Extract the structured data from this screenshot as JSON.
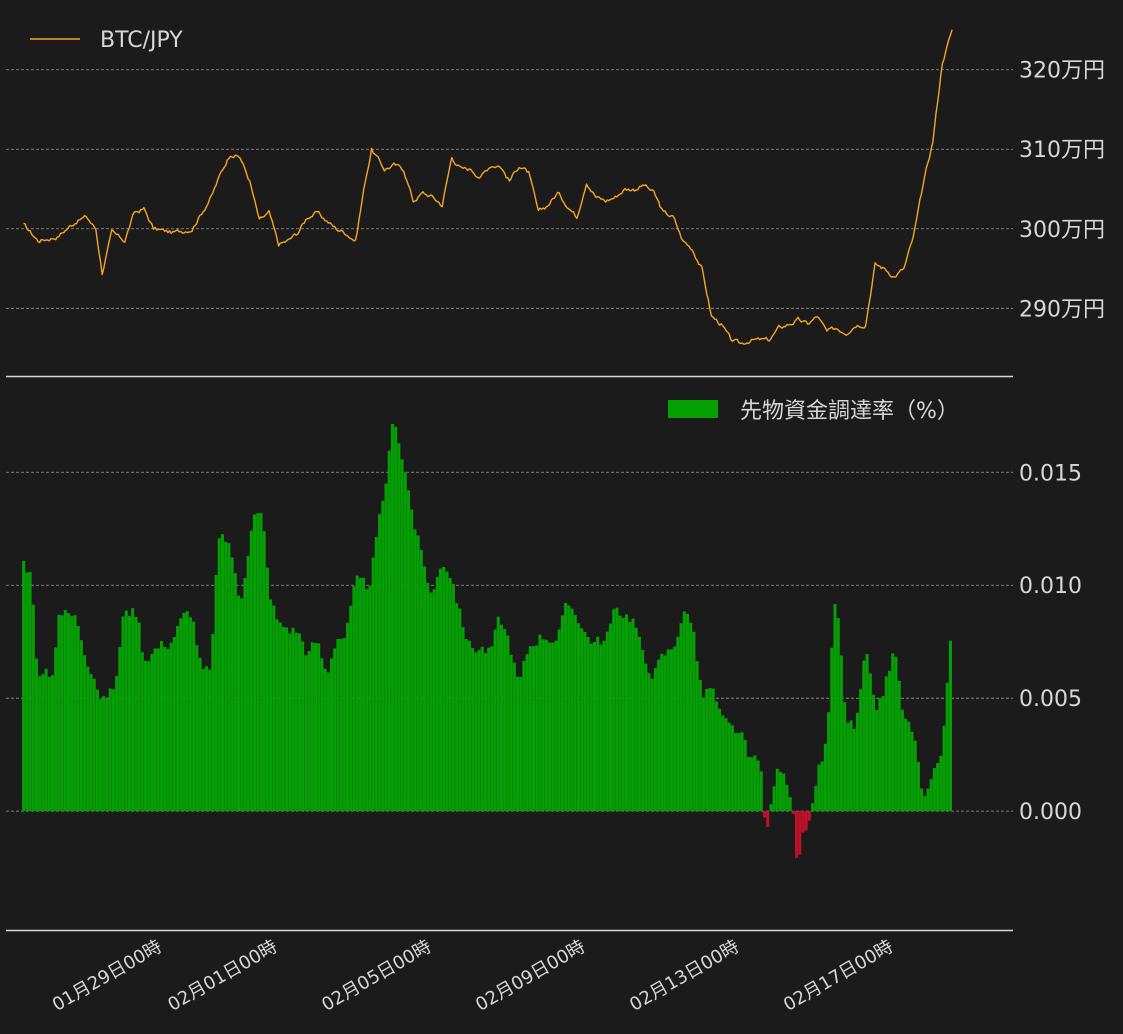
{
  "chart_data": [
    {
      "type": "line",
      "legend": "top-left",
      "grid": true,
      "series": [
        {
          "name": "BTC/JPY",
          "color": "#f5a623"
        }
      ],
      "yticks": [
        {
          "value": 2900000,
          "label": "290万円"
        },
        {
          "value": 3000000,
          "label": "300万円"
        },
        {
          "value": 3100000,
          "label": "310万円"
        },
        {
          "value": 3200000,
          "label": "320万円"
        }
      ],
      "ylim": [
        2835000,
        3260000
      ],
      "anchors": [
        [
          "2020-01-25 09:00",
          3005000
        ],
        [
          "2020-01-25 18:00",
          2985000
        ],
        [
          "2020-01-26 06:00",
          2990000
        ],
        [
          "2020-01-26 18:00",
          3010000
        ],
        [
          "2020-01-27 00:00",
          3015000
        ],
        [
          "2020-01-27 06:00",
          3000000
        ],
        [
          "2020-01-27 10:00",
          2945000
        ],
        [
          "2020-01-27 16:00",
          2995000
        ],
        [
          "2020-01-28 00:00",
          2985000
        ],
        [
          "2020-01-28 06:00",
          3020000
        ],
        [
          "2020-01-28 12:00",
          3025000
        ],
        [
          "2020-01-28 18:00",
          3000000
        ],
        [
          "2020-01-29 06:00",
          2995000
        ],
        [
          "2020-01-29 18:00",
          3000000
        ],
        [
          "2020-01-30 00:00",
          3020000
        ],
        [
          "2020-01-30 06:00",
          3040000
        ],
        [
          "2020-01-30 12:00",
          3070000
        ],
        [
          "2020-01-30 18:00",
          3095000
        ],
        [
          "2020-01-31 00:00",
          3090000
        ],
        [
          "2020-01-31 06:00",
          3060000
        ],
        [
          "2020-01-31 12:00",
          3010000
        ],
        [
          "2020-01-31 18:00",
          3020000
        ],
        [
          "2020-02-01 00:00",
          2980000
        ],
        [
          "2020-02-01 06:00",
          2985000
        ],
        [
          "2020-02-01 12:00",
          2995000
        ],
        [
          "2020-02-01 18:00",
          3015000
        ],
        [
          "2020-02-02 00:00",
          3020000
        ],
        [
          "2020-02-02 06:00",
          3010000
        ],
        [
          "2020-02-02 12:00",
          3000000
        ],
        [
          "2020-02-02 18:00",
          2995000
        ],
        [
          "2020-02-03 00:00",
          2985000
        ],
        [
          "2020-02-03 06:00",
          3060000
        ],
        [
          "2020-02-03 10:00",
          3100000
        ],
        [
          "2020-02-03 18:00",
          3075000
        ],
        [
          "2020-02-04 00:00",
          3080000
        ],
        [
          "2020-02-04 06:00",
          3075000
        ],
        [
          "2020-02-04 12:00",
          3035000
        ],
        [
          "2020-02-04 18:00",
          3045000
        ],
        [
          "2020-02-05 00:00",
          3040000
        ],
        [
          "2020-02-05 06:00",
          3030000
        ],
        [
          "2020-02-05 12:00",
          3090000
        ],
        [
          "2020-02-05 18:00",
          3075000
        ],
        [
          "2020-02-06 00:00",
          3075000
        ],
        [
          "2020-02-06 06:00",
          3065000
        ],
        [
          "2020-02-06 12:00",
          3080000
        ],
        [
          "2020-02-06 18:00",
          3080000
        ],
        [
          "2020-02-07 00:00",
          3060000
        ],
        [
          "2020-02-07 06:00",
          3080000
        ],
        [
          "2020-02-07 12:00",
          3070000
        ],
        [
          "2020-02-07 18:00",
          3020000
        ],
        [
          "2020-02-08 00:00",
          3030000
        ],
        [
          "2020-02-08 06:00",
          3045000
        ],
        [
          "2020-02-08 12:00",
          3030000
        ],
        [
          "2020-02-08 18:00",
          3015000
        ],
        [
          "2020-02-09 00:00",
          3060000
        ],
        [
          "2020-02-09 06:00",
          3040000
        ],
        [
          "2020-02-09 12:00",
          3035000
        ],
        [
          "2020-02-09 18:00",
          3040000
        ],
        [
          "2020-02-10 00:00",
          3050000
        ],
        [
          "2020-02-10 06:00",
          3050000
        ],
        [
          "2020-02-10 12:00",
          3055000
        ],
        [
          "2020-02-10 18:00",
          3045000
        ],
        [
          "2020-02-11 00:00",
          3020000
        ],
        [
          "2020-02-11 06:00",
          3015000
        ],
        [
          "2020-02-11 12:00",
          2985000
        ],
        [
          "2020-02-11 18:00",
          2975000
        ],
        [
          "2020-02-12 00:00",
          2950000
        ],
        [
          "2020-02-12 06:00",
          2890000
        ],
        [
          "2020-02-12 12:00",
          2880000
        ],
        [
          "2020-02-12 18:00",
          2860000
        ],
        [
          "2020-02-13 00:00",
          2855000
        ],
        [
          "2020-02-13 06:00",
          2860000
        ],
        [
          "2020-02-13 12:00",
          2860000
        ],
        [
          "2020-02-13 18:00",
          2860000
        ],
        [
          "2020-02-14 00:00",
          2875000
        ],
        [
          "2020-02-14 06:00",
          2880000
        ],
        [
          "2020-02-14 12:00",
          2885000
        ],
        [
          "2020-02-14 18:00",
          2880000
        ],
        [
          "2020-02-15 00:00",
          2890000
        ],
        [
          "2020-02-15 06:00",
          2870000
        ],
        [
          "2020-02-15 12:00",
          2875000
        ],
        [
          "2020-02-15 18:00",
          2870000
        ],
        [
          "2020-02-16 00:00",
          2880000
        ],
        [
          "2020-02-16 06:00",
          2880000
        ],
        [
          "2020-02-16 12:00",
          2955000
        ],
        [
          "2020-02-16 18:00",
          2950000
        ],
        [
          "2020-02-17 00:00",
          2940000
        ],
        [
          "2020-02-17 06:00",
          2950000
        ],
        [
          "2020-02-17 12:00",
          2990000
        ],
        [
          "2020-02-17 18:00",
          3055000
        ],
        [
          "2020-02-18 00:00",
          3110000
        ],
        [
          "2020-02-18 06:00",
          3210000
        ],
        [
          "2020-02-18 12:00",
          3250000
        ]
      ]
    },
    {
      "type": "bar",
      "legend": "top-right",
      "grid": true,
      "series": [
        {
          "name": "先物資金調達率（%）",
          "color": "#04a004",
          "negative_color": "#c0102a"
        }
      ],
      "yticks": [
        {
          "value": 0,
          "label": "0.000"
        },
        {
          "value": 0.005,
          "label": "0.005"
        },
        {
          "value": 0.01,
          "label": "0.010"
        },
        {
          "value": 0.015,
          "label": "0.015"
        }
      ],
      "ylim": [
        -0.0042,
        0.0182
      ],
      "bar_interval_hours": 2,
      "anchors": [
        [
          "2020-01-25 09:00",
          0.011
        ],
        [
          "2020-01-25 14:00",
          0.0105
        ],
        [
          "2020-01-25 18:00",
          0.006
        ],
        [
          "2020-01-26 04:00",
          0.006
        ],
        [
          "2020-01-26 06:00",
          0.009
        ],
        [
          "2020-01-26 18:00",
          0.0085
        ],
        [
          "2020-01-27 00:00",
          0.007
        ],
        [
          "2020-01-27 06:00",
          0.006
        ],
        [
          "2020-01-27 10:00",
          0.0048
        ],
        [
          "2020-01-27 18:00",
          0.0055
        ],
        [
          "2020-01-28 00:00",
          0.009
        ],
        [
          "2020-01-28 08:00",
          0.0088
        ],
        [
          "2020-01-28 12:00",
          0.0068
        ],
        [
          "2020-01-28 18:00",
          0.0072
        ],
        [
          "2020-01-29 04:00",
          0.0075
        ],
        [
          "2020-01-29 12:00",
          0.0085
        ],
        [
          "2020-01-29 18:00",
          0.0088
        ],
        [
          "2020-01-30 00:00",
          0.0062
        ],
        [
          "2020-01-30 06:00",
          0.006
        ],
        [
          "2020-01-30 10:00",
          0.012
        ],
        [
          "2020-01-30 18:00",
          0.0118
        ],
        [
          "2020-01-31 00:00",
          0.009
        ],
        [
          "2020-01-31 08:00",
          0.0133
        ],
        [
          "2020-01-31 14:00",
          0.013
        ],
        [
          "2020-01-31 18:00",
          0.0098
        ],
        [
          "2020-02-01 00:00",
          0.0082
        ],
        [
          "2020-02-01 12:00",
          0.008
        ],
        [
          "2020-02-01 18:00",
          0.007
        ],
        [
          "2020-02-02 00:00",
          0.0075
        ],
        [
          "2020-02-02 06:00",
          0.006
        ],
        [
          "2020-02-02 12:00",
          0.0078
        ],
        [
          "2020-02-02 18:00",
          0.0078
        ],
        [
          "2020-02-03 00:00",
          0.01
        ],
        [
          "2020-02-03 08:00",
          0.0098
        ],
        [
          "2020-02-03 12:00",
          0.0115
        ],
        [
          "2020-02-03 18:00",
          0.014
        ],
        [
          "2020-02-04 00:00",
          0.0175
        ],
        [
          "2020-02-04 06:00",
          0.0155
        ],
        [
          "2020-02-04 12:00",
          0.013
        ],
        [
          "2020-02-04 18:00",
          0.011
        ],
        [
          "2020-02-05 00:00",
          0.0095
        ],
        [
          "2020-02-05 06:00",
          0.0112
        ],
        [
          "2020-02-05 12:00",
          0.0105
        ],
        [
          "2020-02-05 18:00",
          0.0085
        ],
        [
          "2020-02-06 00:00",
          0.0072
        ],
        [
          "2020-02-06 06:00",
          0.0073
        ],
        [
          "2020-02-06 12:00",
          0.007
        ],
        [
          "2020-02-06 18:00",
          0.0085
        ],
        [
          "2020-02-07 00:00",
          0.0075
        ],
        [
          "2020-02-07 06:00",
          0.0055
        ],
        [
          "2020-02-07 12:00",
          0.0072
        ],
        [
          "2020-02-07 18:00",
          0.0078
        ],
        [
          "2020-02-08 00:00",
          0.0078
        ],
        [
          "2020-02-08 06:00",
          0.0077
        ],
        [
          "2020-02-08 12:00",
          0.009
        ],
        [
          "2020-02-08 18:00",
          0.0088
        ],
        [
          "2020-02-09 00:00",
          0.0078
        ],
        [
          "2020-02-09 06:00",
          0.0075
        ],
        [
          "2020-02-09 12:00",
          0.0076
        ],
        [
          "2020-02-09 18:00",
          0.0088
        ],
        [
          "2020-02-10 00:00",
          0.0088
        ],
        [
          "2020-02-10 06:00",
          0.0085
        ],
        [
          "2020-02-10 12:00",
          0.0065
        ],
        [
          "2020-02-10 18:00",
          0.0062
        ],
        [
          "2020-02-11 00:00",
          0.0068
        ],
        [
          "2020-02-11 06:00",
          0.0072
        ],
        [
          "2020-02-11 12:00",
          0.0088
        ],
        [
          "2020-02-11 18:00",
          0.0085
        ],
        [
          "2020-02-12 00:00",
          0.005
        ],
        [
          "2020-02-12 06:00",
          0.0055
        ],
        [
          "2020-02-12 12:00",
          0.004
        ],
        [
          "2020-02-12 18:00",
          0.0035
        ],
        [
          "2020-02-13 00:00",
          0.0035
        ],
        [
          "2020-02-13 06:00",
          0.002
        ],
        [
          "2020-02-13 12:00",
          0.0025
        ],
        [
          "2020-02-13 16:00",
          -0.0012
        ],
        [
          "2020-02-13 20:00",
          0.0008
        ],
        [
          "2020-02-14 00:00",
          0.002
        ],
        [
          "2020-02-14 06:00",
          0.001
        ],
        [
          "2020-02-14 10:00",
          -0.0005
        ],
        [
          "2020-02-14 12:00",
          -0.0032
        ],
        [
          "2020-02-14 14:00",
          -0.001
        ],
        [
          "2020-02-14 18:00",
          -0.0008
        ],
        [
          "2020-02-15 00:00",
          0.0015
        ],
        [
          "2020-02-15 06:00",
          0.003
        ],
        [
          "2020-02-15 10:00",
          0.0085
        ],
        [
          "2020-02-15 12:00",
          0.0093
        ],
        [
          "2020-02-15 18:00",
          0.004
        ],
        [
          "2020-02-16 00:00",
          0.0035
        ],
        [
          "2020-02-16 06:00",
          0.007
        ],
        [
          "2020-02-16 12:00",
          0.0042
        ],
        [
          "2020-02-16 18:00",
          0.0055
        ],
        [
          "2020-02-17 00:00",
          0.0072
        ],
        [
          "2020-02-17 06:00",
          0.004
        ],
        [
          "2020-02-17 12:00",
          0.0035
        ],
        [
          "2020-02-17 18:00",
          0.0005
        ],
        [
          "2020-02-18 00:00",
          0.0015
        ],
        [
          "2020-02-18 06:00",
          0.003
        ],
        [
          "2020-02-18 12:00",
          0.0085
        ]
      ]
    }
  ],
  "xaxis": {
    "ticks": [
      {
        "date": "2020-01-29 00:00",
        "label": "01月29日00時"
      },
      {
        "date": "2020-02-01 00:00",
        "label": "02月01日00時"
      },
      {
        "date": "2020-02-05 00:00",
        "label": "02月05日00時"
      },
      {
        "date": "2020-02-09 00:00",
        "label": "02月09日00時"
      },
      {
        "date": "2020-02-13 00:00",
        "label": "02月13日00時"
      },
      {
        "date": "2020-02-17 00:00",
        "label": "02月17日00時"
      }
    ],
    "xlim": [
      "2020-01-24 22:00",
      "2020-02-20 02:00"
    ]
  }
}
